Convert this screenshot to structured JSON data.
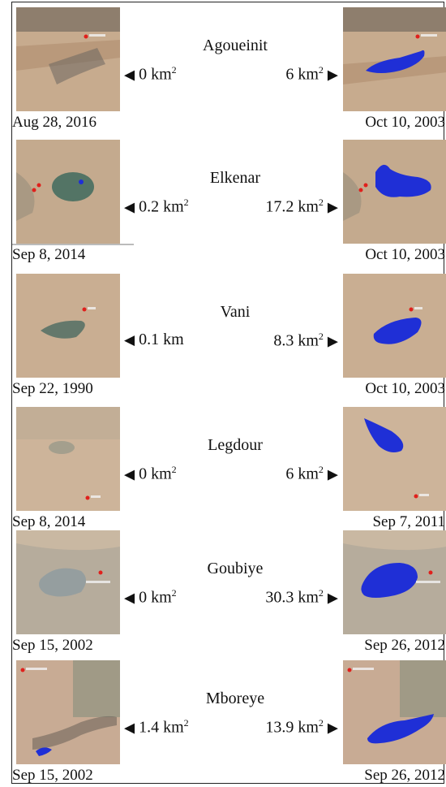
{
  "arrow_left": "◀",
  "arrow_right": "▶",
  "sup": "2",
  "rows": [
    {
      "name": "Agoueinit",
      "left_area": "0 km",
      "left_sup": true,
      "right_area": "6 km",
      "right_sup": true,
      "left_date": "Aug 28, 2016",
      "right_date": "Oct 10, 2003"
    },
    {
      "name": "Elkenar",
      "left_area": "0.2 km",
      "left_sup": true,
      "right_area": "17.2 km",
      "right_sup": true,
      "left_date": "Sep 8, 2014",
      "right_date": "Oct 10, 2003"
    },
    {
      "name": "Vani",
      "left_area": "0.1 km",
      "left_sup": false,
      "right_area": "8.3 km",
      "right_sup": true,
      "left_date": "Sep 22, 1990",
      "right_date": "Oct 10, 2003"
    },
    {
      "name": "Legdour",
      "left_area": "0 km",
      "left_sup": true,
      "right_area": "6 km",
      "right_sup": true,
      "left_date": "Sep 8, 2014",
      "right_date": "Sep 7, 2011"
    },
    {
      "name": "Goubiye",
      "left_area": "0 km",
      "left_sup": true,
      "right_area": "30.3 km",
      "right_sup": true,
      "left_date": "Sep 15, 2002",
      "right_date": "Sep 26, 2012"
    },
    {
      "name": "Mboreye",
      "left_area": "1.4 km",
      "left_sup": true,
      "right_area": "13.9 km",
      "right_sup": true,
      "left_date": "Sep 15, 2002",
      "right_date": "Sep 26, 2012"
    }
  ],
  "colors": {
    "water_blue": "#1f2fd6",
    "sand": "#c9ad8f",
    "marker": "#e0201c"
  }
}
